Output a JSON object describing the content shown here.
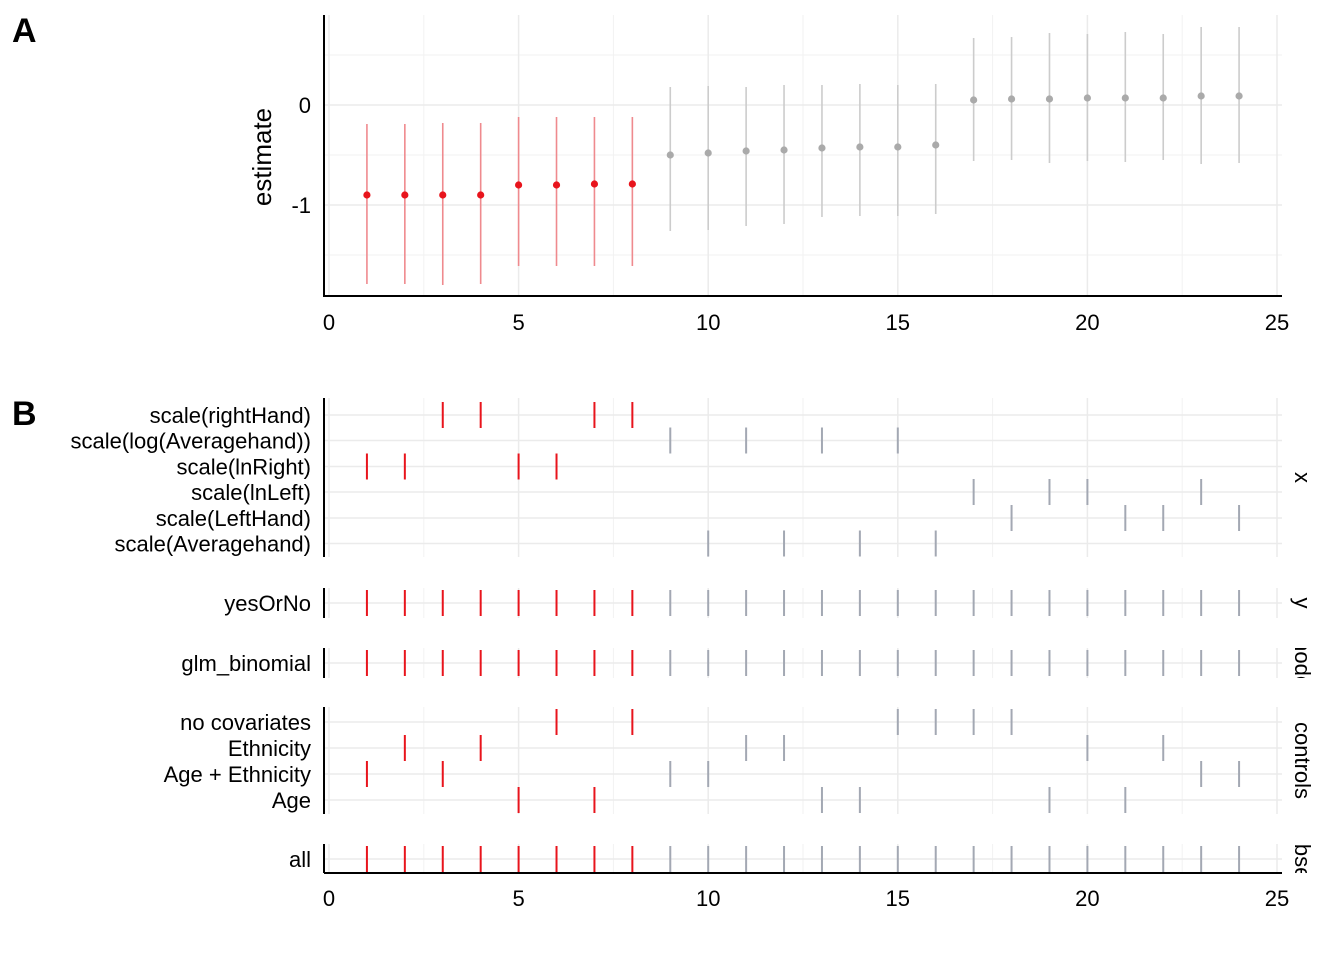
{
  "panel_labels": {
    "a": "A",
    "b": "B"
  },
  "colors": {
    "significant": "#e8141c",
    "significant_ci": "#ef8a8e",
    "nonsignificant": "#aaaaaa",
    "nonsignificant_ci": "#cccccc",
    "choice_tick_gray": "#a3a8b3"
  },
  "chart_data": [
    {
      "type": "scatter",
      "panel": "A",
      "ylabel": "estimate",
      "xlabel": "",
      "xlim": [
        0,
        25
      ],
      "ylim": [
        -1.9,
        0.9
      ],
      "x_ticks": [
        "0",
        "5",
        "10",
        "15",
        "20",
        "25"
      ],
      "y_ticks": [
        "0",
        "-1"
      ],
      "grid": true,
      "specifications": [
        {
          "rank": 1,
          "estimate": -0.9,
          "conf_low": -1.79,
          "conf_high": -0.19,
          "significant": true
        },
        {
          "rank": 2,
          "estimate": -0.9,
          "conf_low": -1.79,
          "conf_high": -0.19,
          "significant": true
        },
        {
          "rank": 3,
          "estimate": -0.9,
          "conf_low": -1.8,
          "conf_high": -0.18,
          "significant": true
        },
        {
          "rank": 4,
          "estimate": -0.9,
          "conf_low": -1.79,
          "conf_high": -0.18,
          "significant": true
        },
        {
          "rank": 5,
          "estimate": -0.8,
          "conf_low": -1.61,
          "conf_high": -0.12,
          "significant": true
        },
        {
          "rank": 6,
          "estimate": -0.8,
          "conf_low": -1.61,
          "conf_high": -0.12,
          "significant": true
        },
        {
          "rank": 7,
          "estimate": -0.79,
          "conf_low": -1.61,
          "conf_high": -0.12,
          "significant": true
        },
        {
          "rank": 8,
          "estimate": -0.79,
          "conf_low": -1.61,
          "conf_high": -0.12,
          "significant": true
        },
        {
          "rank": 9,
          "estimate": -0.5,
          "conf_low": -1.26,
          "conf_high": 0.18,
          "significant": false
        },
        {
          "rank": 10,
          "estimate": -0.48,
          "conf_low": -1.25,
          "conf_high": 0.19,
          "significant": false
        },
        {
          "rank": 11,
          "estimate": -0.46,
          "conf_low": -1.21,
          "conf_high": 0.18,
          "significant": false
        },
        {
          "rank": 12,
          "estimate": -0.45,
          "conf_low": -1.19,
          "conf_high": 0.2,
          "significant": false
        },
        {
          "rank": 13,
          "estimate": -0.43,
          "conf_low": -1.12,
          "conf_high": 0.2,
          "significant": false
        },
        {
          "rank": 14,
          "estimate": -0.42,
          "conf_low": -1.11,
          "conf_high": 0.21,
          "significant": false
        },
        {
          "rank": 15,
          "estimate": -0.42,
          "conf_low": -1.11,
          "conf_high": 0.2,
          "significant": false
        },
        {
          "rank": 16,
          "estimate": -0.4,
          "conf_low": -1.09,
          "conf_high": 0.21,
          "significant": false
        },
        {
          "rank": 17,
          "estimate": 0.05,
          "conf_low": -0.56,
          "conf_high": 0.67,
          "significant": false
        },
        {
          "rank": 18,
          "estimate": 0.06,
          "conf_low": -0.55,
          "conf_high": 0.68,
          "significant": false
        },
        {
          "rank": 19,
          "estimate": 0.06,
          "conf_low": -0.58,
          "conf_high": 0.72,
          "significant": false
        },
        {
          "rank": 20,
          "estimate": 0.07,
          "conf_low": -0.56,
          "conf_high": 0.71,
          "significant": false
        },
        {
          "rank": 21,
          "estimate": 0.07,
          "conf_low": -0.57,
          "conf_high": 0.73,
          "significant": false
        },
        {
          "rank": 22,
          "estimate": 0.07,
          "conf_low": -0.55,
          "conf_high": 0.71,
          "significant": false
        },
        {
          "rank": 23,
          "estimate": 0.09,
          "conf_low": -0.59,
          "conf_high": 0.78,
          "significant": false
        },
        {
          "rank": 24,
          "estimate": 0.09,
          "conf_low": -0.58,
          "conf_high": 0.78,
          "significant": false
        }
      ]
    },
    {
      "type": "table",
      "panel": "B",
      "xlim": [
        0,
        25
      ],
      "x_ticks": [
        "0",
        "5",
        "10",
        "15",
        "20",
        "25"
      ],
      "facets": [
        {
          "strip": "x",
          "options": [
            {
              "label": "scale(rightHand)",
              "ranks": [
                3,
                4,
                7,
                8
              ]
            },
            {
              "label": "scale(log(Averagehand))",
              "ranks": [
                9,
                11,
                13,
                15
              ]
            },
            {
              "label": "scale(lnRight)",
              "ranks": [
                1,
                2,
                5,
                6
              ]
            },
            {
              "label": "scale(lnLeft)",
              "ranks": [
                17,
                19,
                20,
                23
              ]
            },
            {
              "label": "scale(LeftHand)",
              "ranks": [
                18,
                21,
                22,
                24
              ]
            },
            {
              "label": "scale(Averagehand)",
              "ranks": [
                10,
                12,
                14,
                16
              ]
            }
          ]
        },
        {
          "strip": "y",
          "options": [
            {
              "label": "yesOrNo",
              "ranks": [
                1,
                2,
                3,
                4,
                5,
                6,
                7,
                8,
                9,
                10,
                11,
                12,
                13,
                14,
                15,
                16,
                17,
                18,
                19,
                20,
                21,
                22,
                23,
                24
              ]
            }
          ]
        },
        {
          "strip": "model",
          "options": [
            {
              "label": "glm_binomial",
              "ranks": [
                1,
                2,
                3,
                4,
                5,
                6,
                7,
                8,
                9,
                10,
                11,
                12,
                13,
                14,
                15,
                16,
                17,
                18,
                19,
                20,
                21,
                22,
                23,
                24
              ]
            }
          ]
        },
        {
          "strip": "controls",
          "options": [
            {
              "label": "no covariates",
              "ranks": [
                6,
                8,
                15,
                16,
                17,
                18
              ]
            },
            {
              "label": "Ethnicity",
              "ranks": [
                2,
                4,
                11,
                12,
                20,
                22
              ]
            },
            {
              "label": "Age + Ethnicity",
              "ranks": [
                1,
                3,
                9,
                10,
                23,
                24
              ]
            },
            {
              "label": "Age",
              "ranks": [
                5,
                7,
                13,
                14,
                19,
                21
              ]
            }
          ]
        },
        {
          "strip": "subsets",
          "options": [
            {
              "label": "all",
              "ranks": [
                1,
                2,
                3,
                4,
                5,
                6,
                7,
                8,
                9,
                10,
                11,
                12,
                13,
                14,
                15,
                16,
                17,
                18,
                19,
                20,
                21,
                22,
                23,
                24
              ]
            }
          ]
        }
      ]
    }
  ]
}
